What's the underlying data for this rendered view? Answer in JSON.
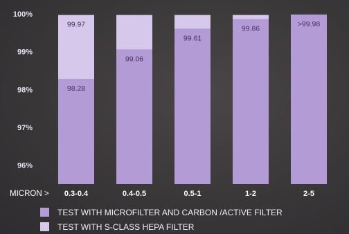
{
  "chart_data": {
    "type": "bar",
    "x_prefix": "MICRON >",
    "categories": [
      "0.3-0.4",
      "0.4-0.5",
      "0.5-1",
      "1-2",
      "2-5"
    ],
    "series": [
      {
        "name": "TEST WITH MICROFILTER AND CARBON /ACTIVE FILTER",
        "values": [
          98.28,
          99.06,
          99.61,
          99.86,
          99.98
        ],
        "labels": [
          "98.28",
          "99.06",
          "99.61",
          "99.86",
          ">99.98"
        ],
        "color": "#b39bd6"
      },
      {
        "name": "TEST WITH S-CLASS HEPA FILTER",
        "values": [
          99.97,
          99.97,
          99.97,
          99.97,
          99.98
        ],
        "labels": [
          "99.97",
          "",
          "",
          "",
          ""
        ],
        "color": "#d6c8ea"
      }
    ],
    "ylim": [
      95.5,
      100
    ],
    "yticks": [
      96,
      97,
      98,
      99,
      100
    ],
    "ytick_labels": [
      "96%",
      "97%",
      "98%",
      "99%",
      "100%"
    ],
    "grid": false,
    "legend_position": "bottom-left"
  }
}
